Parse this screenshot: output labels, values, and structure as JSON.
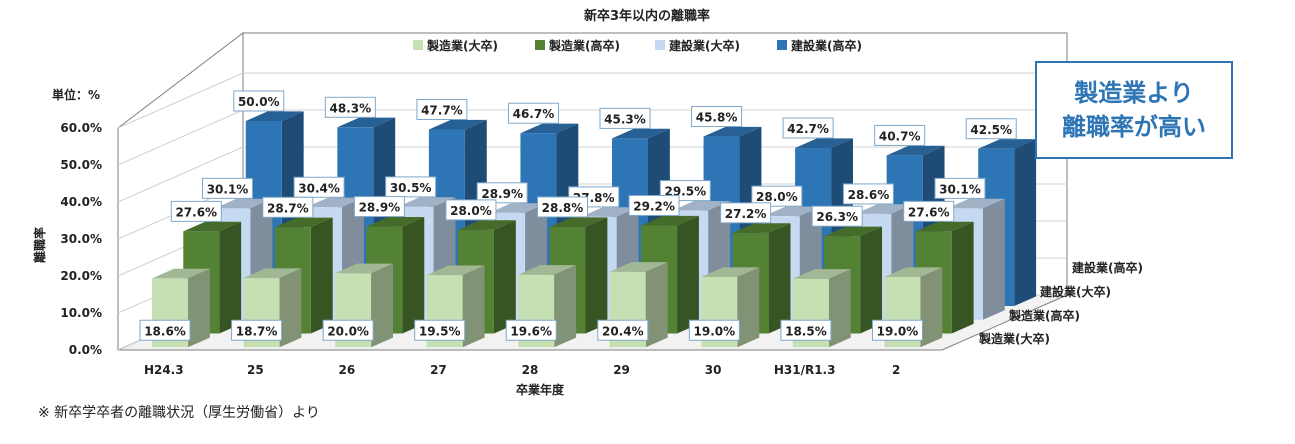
{
  "chart_data": {
    "type": "bar",
    "title": "新卒3年以内の離職率",
    "unit_label": "単位：%",
    "ylabel": "離職率",
    "xlabel": "卒業年度",
    "ylim": [
      0,
      60
    ],
    "yticks": [
      "0.0%",
      "10.0%",
      "20.0%",
      "30.0%",
      "40.0%",
      "50.0%",
      "60.0%"
    ],
    "categories": [
      "H24.3",
      "25",
      "26",
      "27",
      "28",
      "29",
      "30",
      "H31/R1.3",
      "2"
    ],
    "depth_labels": [
      "建設業(高卒)",
      "建設業(大卒)",
      "製造業(高卒)",
      "製造業(大卒)"
    ],
    "series": [
      {
        "name": "製造業(大卒)",
        "values": [
          18.6,
          18.7,
          20.0,
          19.5,
          19.6,
          20.4,
          19.0,
          18.5,
          19.0
        ],
        "labels": [
          "18.6%",
          "18.7%",
          "20.0%",
          "19.5%",
          "19.6%",
          "20.4%",
          "19.0%",
          "18.5%",
          "19.0%"
        ],
        "color": "#c6e0b4"
      },
      {
        "name": "製造業(高卒)",
        "values": [
          27.6,
          28.7,
          28.9,
          28.0,
          28.8,
          29.2,
          27.2,
          26.3,
          27.6
        ],
        "labels": [
          "27.6%",
          "28.7%",
          "28.9%",
          "28.0%",
          "28.8%",
          "29.2%",
          "27.2%",
          "26.3%",
          "27.6%"
        ],
        "color": "#548235"
      },
      {
        "name": "建設業(大卒)",
        "values": [
          30.1,
          30.4,
          30.5,
          28.9,
          27.8,
          29.5,
          28.0,
          28.6,
          30.1
        ],
        "labels": [
          "30.1%",
          "30.4%",
          "30.5%",
          "28.9%",
          "27.8%",
          "29.5%",
          "28.0%",
          "28.6%",
          "30.1%"
        ],
        "color": "#c5d9f1"
      },
      {
        "name": "建設業(高卒)",
        "values": [
          50.0,
          48.3,
          47.7,
          46.7,
          45.3,
          45.8,
          42.7,
          40.7,
          42.5
        ],
        "labels": [
          "50.0%",
          "48.3%",
          "47.7%",
          "46.7%",
          "45.3%",
          "45.8%",
          "42.7%",
          "40.7%",
          "42.5%"
        ],
        "color": "#2e75b6"
      }
    ],
    "legend_position": "top",
    "grid": true
  },
  "callout": {
    "line1": "製造業より",
    "line2": "離職率が高い"
  },
  "footnote": "※ 新卒学卒者の離職状況（厚生労働省）より"
}
